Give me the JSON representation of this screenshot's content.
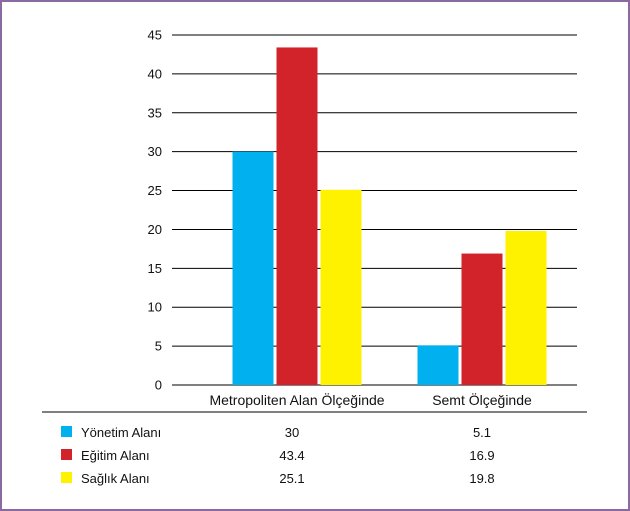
{
  "chart_data": {
    "type": "bar",
    "categories": [
      "Metropoliten Alan Ölçeğinde",
      "Semt Ölçeğinde"
    ],
    "series": [
      {
        "name": "Yönetim Alanı",
        "color": "#00b0ef",
        "values": [
          30,
          5.1
        ]
      },
      {
        "name": "Eğitim Alanı",
        "color": "#d2232a",
        "values": [
          43.4,
          16.9
        ]
      },
      {
        "name": "Sağlık Alanı",
        "color": "#fff200",
        "values": [
          25.1,
          19.8
        ]
      }
    ],
    "yticks": [
      "0",
      "5",
      "10",
      "15",
      "20",
      "25",
      "30",
      "35",
      "40",
      "45"
    ],
    "ylim": [
      0,
      45
    ],
    "grid": true,
    "legend_placement": "bottom-table",
    "table": {
      "rows": [
        {
          "label": "Yönetim Alanı",
          "values": [
            "30",
            "5.1"
          ]
        },
        {
          "label": "Eğitim Alanı",
          "values": [
            "43.4",
            "16.9"
          ]
        },
        {
          "label": "Sağlık Alanı",
          "values": [
            "25.1",
            "19.8"
          ]
        }
      ]
    }
  }
}
